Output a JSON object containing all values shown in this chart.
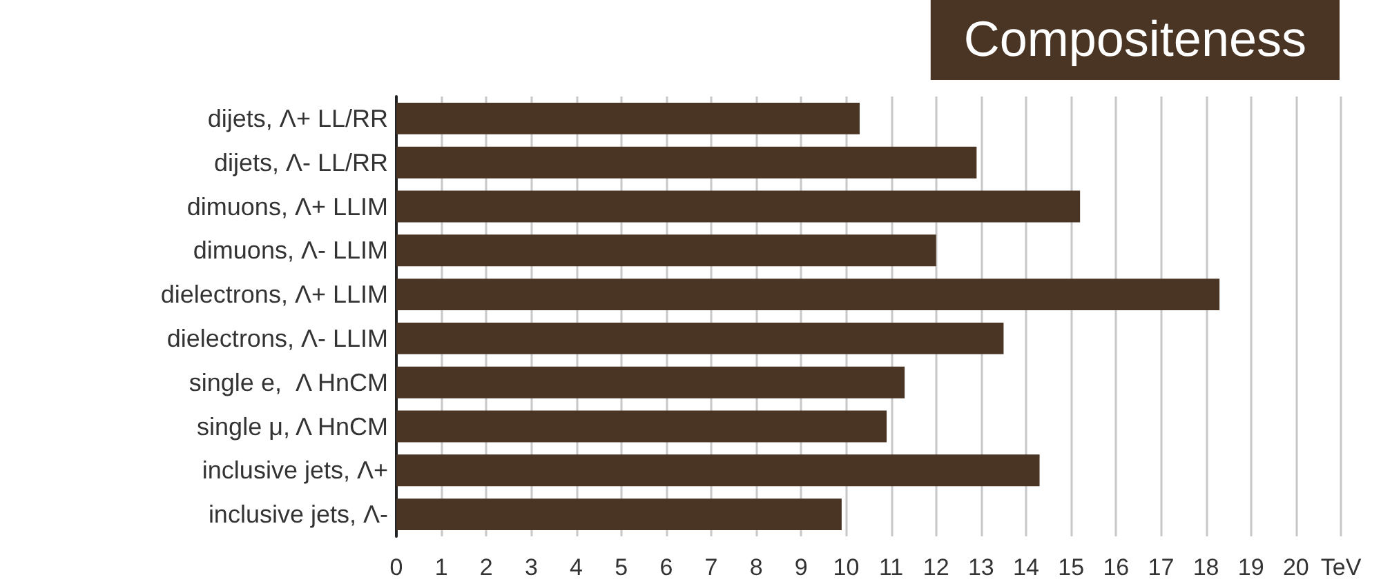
{
  "chart_data": {
    "type": "bar",
    "orientation": "horizontal",
    "title": "Compositeness",
    "categories": [
      "dijets, Λ+ LL/RR",
      "dijets, Λ- LL/RR",
      "dimuons, Λ+ LLIM",
      "dimuons, Λ- LLIM",
      "dielectrons, Λ+ LLIM",
      "dielectrons, Λ- LLIM",
      "single e,  Λ HnCM",
      "single μ, Λ HnCM",
      "inclusive jets, Λ+",
      "inclusive jets, Λ-"
    ],
    "values": [
      10.3,
      12.9,
      15.2,
      12.0,
      18.3,
      13.5,
      11.3,
      10.9,
      14.3,
      9.9
    ],
    "color": "#4a3524",
    "xlim": [
      0,
      21
    ],
    "xticks": [
      0,
      1,
      2,
      3,
      4,
      5,
      6,
      7,
      8,
      9,
      10,
      11,
      12,
      13,
      14,
      15,
      16,
      17,
      18,
      19,
      20,
      {
        "value": 21,
        "label": "TeV"
      }
    ],
    "grid": "x"
  }
}
